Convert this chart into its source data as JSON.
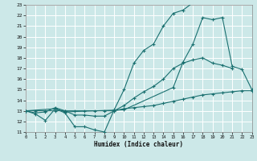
{
  "xlabel": "Humidex (Indice chaleur)",
  "bg_color": "#cce8e8",
  "grid_color": "#ffffff",
  "line_color": "#1a7070",
  "xlim": [
    0,
    23
  ],
  "ylim": [
    11,
    23
  ],
  "xticks": [
    0,
    1,
    2,
    3,
    4,
    5,
    6,
    7,
    8,
    9,
    10,
    11,
    12,
    13,
    14,
    15,
    16,
    17,
    18,
    19,
    20,
    21,
    22,
    23
  ],
  "yticks": [
    11,
    12,
    13,
    14,
    15,
    16,
    17,
    18,
    19,
    20,
    21,
    22,
    23
  ],
  "series": [
    {
      "x": [
        0,
        1,
        2,
        3,
        4,
        5,
        6,
        7,
        8,
        9,
        10,
        11,
        12,
        13,
        14,
        15,
        16,
        17
      ],
      "y": [
        13,
        12.7,
        12.1,
        13.2,
        12.8,
        11.5,
        11.5,
        11.2,
        11.0,
        13.1,
        15.0,
        17.5,
        18.7,
        19.3,
        21.0,
        22.2,
        22.5,
        23.2
      ]
    },
    {
      "x": [
        0,
        1,
        2,
        3,
        4,
        5,
        6,
        7,
        8,
        9,
        10,
        11,
        12,
        13,
        14,
        15,
        16,
        17,
        18,
        19,
        20,
        21
      ],
      "y": [
        13,
        12.8,
        12.9,
        13.3,
        13.0,
        12.6,
        12.6,
        12.5,
        12.5,
        13.0,
        13.5,
        14.2,
        14.8,
        15.3,
        16.0,
        17.0,
        17.5,
        17.8,
        18.0,
        17.5,
        17.3,
        17.0
      ]
    },
    {
      "x": [
        0,
        1,
        2,
        3,
        4,
        5,
        6,
        7,
        8,
        9,
        10,
        11,
        12,
        13,
        14,
        15,
        16,
        17,
        18,
        19,
        20,
        21,
        22,
        23
      ],
      "y": [
        13,
        13,
        13,
        13,
        13,
        13,
        13,
        13,
        13,
        13,
        13.2,
        13.3,
        13.4,
        13.5,
        13.7,
        13.9,
        14.1,
        14.3,
        14.5,
        14.6,
        14.7,
        14.8,
        14.9,
        14.9
      ]
    },
    {
      "x": [
        0,
        3,
        4,
        10,
        15,
        16,
        17,
        18,
        19,
        20,
        21,
        22,
        23
      ],
      "y": [
        13,
        13.2,
        12.9,
        13.1,
        15.2,
        17.6,
        19.3,
        21.8,
        21.6,
        21.8,
        17.2,
        16.9,
        15.0
      ]
    }
  ]
}
